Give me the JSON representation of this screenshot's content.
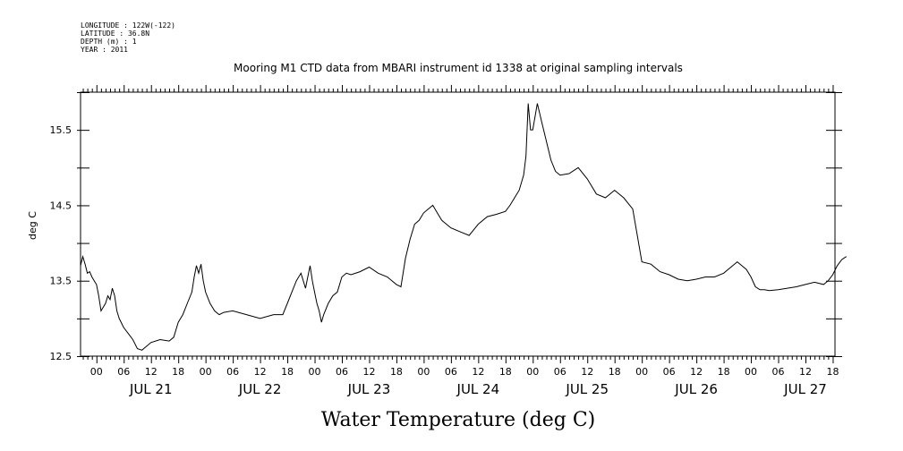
{
  "meta": [
    "LONGITUDE : 122W(-122)",
    "LATITUDE : 36.8N",
    "DEPTH (m) : 1",
    "YEAR : 2011"
  ],
  "chart_data": {
    "type": "line",
    "title": "Mooring M1 CTD data from MBARI instrument id 1338 at original sampling intervals",
    "xlabel": "Water Temperature (deg C)",
    "ylabel": "deg C",
    "ylim": [
      12.5,
      16.0
    ],
    "yticks": [
      12.5,
      13.5,
      14.5,
      15.5
    ],
    "y_tick_labels": [
      "12.5",
      "13.5",
      "14.5",
      "15.5"
    ],
    "x_range_hours": [
      -3.5,
      162.5
    ],
    "x_tick_hours": [
      "00",
      "06",
      "12",
      "18"
    ],
    "date_labels": [
      "JUL 21",
      "JUL 22",
      "JUL 23",
      "JUL 24",
      "JUL 25",
      "JUL 26",
      "JUL 27"
    ],
    "grid": false,
    "color": "#000000",
    "series": [
      {
        "x": [
          "07-20 20:30",
          "07-20 21:00",
          "07-20 21:30",
          "07-20 22:00",
          "07-20 22:30",
          "07-20 23:00",
          "07-20 23:30",
          "07-21 00:00",
          "07-21 00:30",
          "07-21 01:00",
          "07-21 01:30",
          "07-21 02:00",
          "07-21 02:30",
          "07-21 03:00",
          "07-21 03:30",
          "07-21 04:00",
          "07-21 04:30",
          "07-21 05:00",
          "07-21 06:00",
          "07-21 07:00",
          "07-21 08:00",
          "07-21 09:00",
          "07-21 10:00",
          "07-21 12:00",
          "07-21 14:00",
          "07-21 16:00",
          "07-21 17:00",
          "07-21 18:00",
          "07-21 19:00",
          "07-21 20:00",
          "07-21 21:00",
          "07-21 21:30",
          "07-21 22:00",
          "07-21 22:30",
          "07-21 23:00",
          "07-21 23:30",
          "07-22 00:00",
          "07-22 01:00",
          "07-22 02:00",
          "07-22 03:00",
          "07-22 04:00",
          "07-22 06:00",
          "07-22 09:00",
          "07-22 12:00",
          "07-22 15:00",
          "07-22 17:00",
          "07-22 18:00",
          "07-22 19:00",
          "07-22 20:00",
          "07-22 21:00",
          "07-22 22:00",
          "07-22 22:30",
          "07-22 23:00",
          "07-22 23:30",
          "07-23 00:00",
          "07-23 00:30",
          "07-23 01:00",
          "07-23 01:30",
          "07-23 02:00",
          "07-23 03:00",
          "07-23 04:00",
          "07-23 05:00",
          "07-23 06:00",
          "07-23 07:00",
          "07-23 08:00",
          "07-23 10:00",
          "07-23 12:00",
          "07-23 14:00",
          "07-23 16:00",
          "07-23 17:00",
          "07-23 18:00",
          "07-23 19:00",
          "07-23 20:00",
          "07-23 21:00",
          "07-23 22:00",
          "07-23 23:00",
          "07-24 00:00",
          "07-24 01:00",
          "07-24 02:00",
          "07-24 03:00",
          "07-24 04:00",
          "07-24 06:00",
          "07-24 08:00",
          "07-24 10:00",
          "07-24 12:00",
          "07-24 14:00",
          "07-24 16:00",
          "07-24 18:00",
          "07-24 19:00",
          "07-24 20:00",
          "07-24 21:00",
          "07-24 21:30",
          "07-24 22:00",
          "07-24 22:30",
          "07-24 23:00",
          "07-24 23:30",
          "07-25 00:00",
          "07-25 01:00",
          "07-25 02:00",
          "07-25 03:00",
          "07-25 04:00",
          "07-25 05:00",
          "07-25 06:00",
          "07-25 08:00",
          "07-25 10:00",
          "07-25 12:00",
          "07-25 14:00",
          "07-25 16:00",
          "07-25 18:00",
          "07-25 20:00",
          "07-25 22:00",
          "07-25 23:00",
          "07-26 00:00",
          "07-26 02:00",
          "07-26 04:00",
          "07-26 06:00",
          "07-26 08:00",
          "07-26 10:00",
          "07-26 12:00",
          "07-26 14:00",
          "07-26 16:00",
          "07-26 18:00",
          "07-26 20:00",
          "07-26 21:00",
          "07-26 22:00",
          "07-26 23:00",
          "07-27 00:00",
          "07-27 01:00",
          "07-27 02:00",
          "07-27 03:00",
          "07-27 04:00",
          "07-27 06:00",
          "07-27 08:00",
          "07-27 10:00",
          "07-27 12:00",
          "07-27 14:00",
          "07-27 16:00",
          "07-27 17:00",
          "07-27 18:00",
          "07-27 19:00",
          "07-27 20:00",
          "07-27 21:00"
        ],
        "y": [
          13.7,
          13.82,
          13.72,
          13.6,
          13.62,
          13.55,
          13.5,
          13.45,
          13.3,
          13.1,
          13.15,
          13.2,
          13.3,
          13.25,
          13.4,
          13.3,
          13.1,
          13.0,
          12.88,
          12.8,
          12.72,
          12.6,
          12.58,
          12.68,
          12.72,
          12.7,
          12.75,
          12.95,
          13.05,
          13.2,
          13.35,
          13.55,
          13.7,
          13.6,
          13.72,
          13.5,
          13.35,
          13.2,
          13.1,
          13.05,
          13.08,
          13.1,
          13.05,
          13.0,
          13.05,
          13.05,
          13.2,
          13.35,
          13.5,
          13.6,
          13.4,
          13.55,
          13.7,
          13.5,
          13.35,
          13.2,
          13.1,
          12.95,
          13.05,
          13.2,
          13.3,
          13.35,
          13.55,
          13.6,
          13.58,
          13.62,
          13.68,
          13.6,
          13.55,
          13.5,
          13.45,
          13.42,
          13.8,
          14.05,
          14.25,
          14.3,
          14.4,
          14.45,
          14.5,
          14.4,
          14.3,
          14.2,
          14.15,
          14.1,
          14.25,
          14.35,
          14.38,
          14.42,
          14.5,
          14.6,
          14.7,
          14.8,
          14.9,
          15.15,
          15.85,
          15.5,
          15.5,
          15.85,
          15.6,
          15.35,
          15.1,
          14.95,
          14.9,
          14.92,
          15.0,
          14.85,
          14.65,
          14.6,
          14.7,
          14.6,
          14.45,
          14.1,
          13.75,
          13.72,
          13.62,
          13.58,
          13.52,
          13.5,
          13.52,
          13.55,
          13.55,
          13.6,
          13.7,
          13.75,
          13.7,
          13.65,
          13.55,
          13.42,
          13.38,
          13.38,
          13.37,
          13.38,
          13.4,
          13.42,
          13.45,
          13.48,
          13.45,
          13.5,
          13.58,
          13.7,
          13.78,
          13.82
        ]
      }
    ]
  }
}
